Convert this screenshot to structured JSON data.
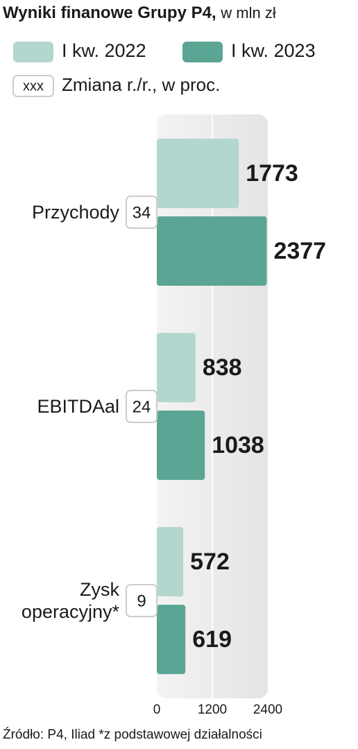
{
  "chart_data": {
    "type": "hbar",
    "title": "Wyniki finanowe Grupy P4,",
    "subtitle": "w mln zł",
    "categories": [
      "Przychody",
      "EBITDAal",
      "Zysk operacyjny*"
    ],
    "series": [
      {
        "name": "I kw. 2022",
        "color": "#b3d7ce",
        "values": [
          1773,
          838,
          572
        ]
      },
      {
        "name": "I kw. 2023",
        "color": "#5ba594",
        "values": [
          2377,
          1038,
          619
        ]
      }
    ],
    "changes": [
      34,
      24,
      9
    ],
    "change_legend": {
      "sample": "xxx",
      "label": "Zmiana r./r., w proc."
    },
    "xlim": [
      0,
      2400
    ],
    "xticks": [
      0,
      1200,
      2400
    ],
    "grid": true,
    "source": "Źródło: P4, Iliad *z podstawowej działalności"
  }
}
